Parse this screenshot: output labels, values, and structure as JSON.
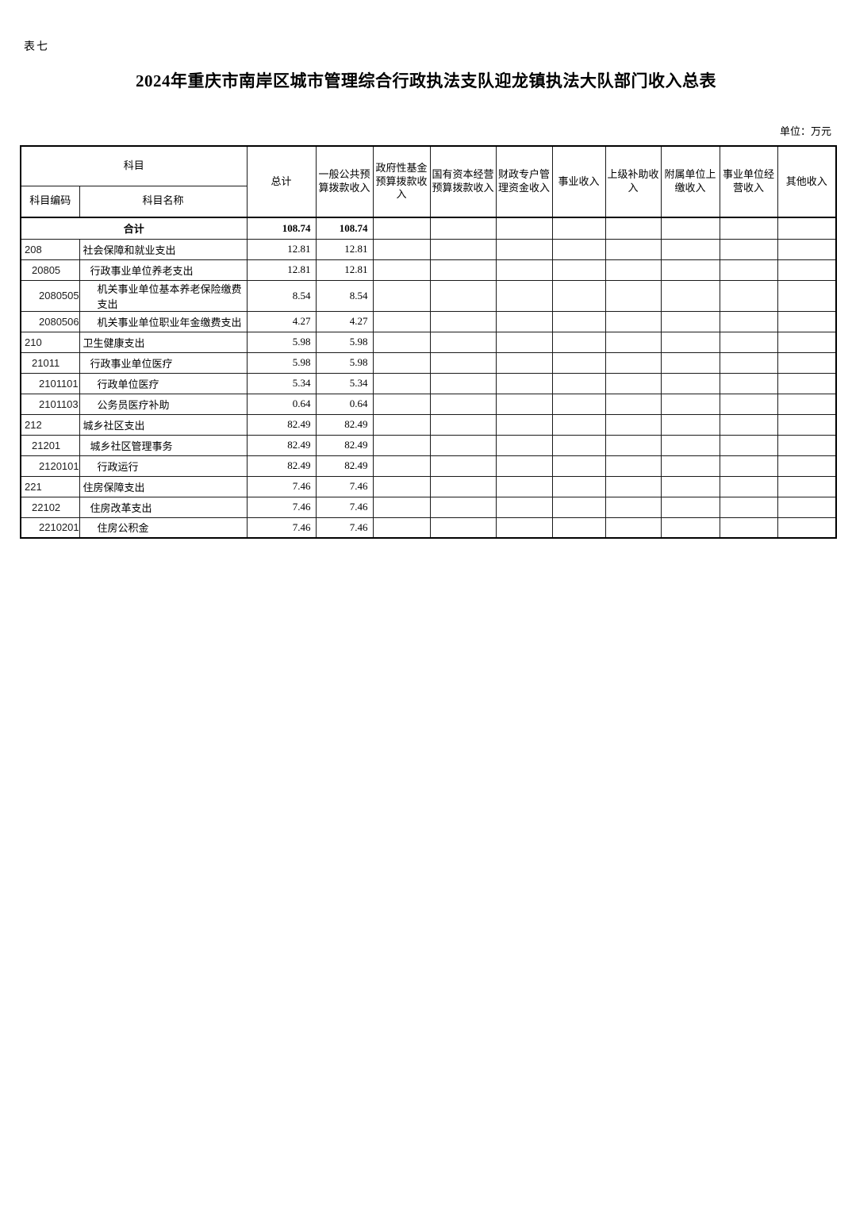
{
  "page": {
    "sheet_label": "表七",
    "title": "2024年重庆市南岸区城市管理综合行政执法支队迎龙镇执法大队部门收入总表",
    "unit_note": "单位：万元"
  },
  "table": {
    "header": {
      "subject_group": "科目",
      "subject_code": "科目编码",
      "subject_name": "科目名称",
      "value_columns": [
        "总计",
        "一般公共预算拨款收入",
        "政府性基金预算拨款收入",
        "国有资本经营预算拨款收入",
        "财政专户管理资金收入",
        "事业收入",
        "上级补助收入",
        "附属单位上缴收入",
        "事业单位经营收入",
        "其他收入"
      ]
    },
    "total_row": {
      "label": "合计",
      "values": [
        "108.74",
        "108.74",
        "",
        "",
        "",
        "",
        "",
        "",
        "",
        ""
      ]
    },
    "rows": [
      {
        "code": "208",
        "name": "社会保障和就业支出",
        "level": 1,
        "values": [
          "12.81",
          "12.81",
          "",
          "",
          "",
          "",
          "",
          "",
          "",
          ""
        ]
      },
      {
        "code": "20805",
        "name": "行政事业单位养老支出",
        "level": 2,
        "values": [
          "12.81",
          "12.81",
          "",
          "",
          "",
          "",
          "",
          "",
          "",
          ""
        ]
      },
      {
        "code": "2080505",
        "name": "机关事业单位基本养老保险缴费支出",
        "level": 3,
        "values": [
          "8.54",
          "8.54",
          "",
          "",
          "",
          "",
          "",
          "",
          "",
          ""
        ]
      },
      {
        "code": "2080506",
        "name": "机关事业单位职业年金缴费支出",
        "level": 3,
        "values": [
          "4.27",
          "4.27",
          "",
          "",
          "",
          "",
          "",
          "",
          "",
          ""
        ]
      },
      {
        "code": "210",
        "name": "卫生健康支出",
        "level": 1,
        "values": [
          "5.98",
          "5.98",
          "",
          "",
          "",
          "",
          "",
          "",
          "",
          ""
        ]
      },
      {
        "code": "21011",
        "name": "行政事业单位医疗",
        "level": 2,
        "values": [
          "5.98",
          "5.98",
          "",
          "",
          "",
          "",
          "",
          "",
          "",
          ""
        ]
      },
      {
        "code": "2101101",
        "name": "行政单位医疗",
        "level": 3,
        "values": [
          "5.34",
          "5.34",
          "",
          "",
          "",
          "",
          "",
          "",
          "",
          ""
        ]
      },
      {
        "code": "2101103",
        "name": "公务员医疗补助",
        "level": 3,
        "values": [
          "0.64",
          "0.64",
          "",
          "",
          "",
          "",
          "",
          "",
          "",
          ""
        ]
      },
      {
        "code": "212",
        "name": "城乡社区支出",
        "level": 1,
        "values": [
          "82.49",
          "82.49",
          "",
          "",
          "",
          "",
          "",
          "",
          "",
          ""
        ]
      },
      {
        "code": "21201",
        "name": "城乡社区管理事务",
        "level": 2,
        "values": [
          "82.49",
          "82.49",
          "",
          "",
          "",
          "",
          "",
          "",
          "",
          ""
        ]
      },
      {
        "code": "2120101",
        "name": "行政运行",
        "level": 3,
        "values": [
          "82.49",
          "82.49",
          "",
          "",
          "",
          "",
          "",
          "",
          "",
          ""
        ]
      },
      {
        "code": "221",
        "name": "住房保障支出",
        "level": 1,
        "values": [
          "7.46",
          "7.46",
          "",
          "",
          "",
          "",
          "",
          "",
          "",
          ""
        ]
      },
      {
        "code": "22102",
        "name": "住房改革支出",
        "level": 2,
        "values": [
          "7.46",
          "7.46",
          "",
          "",
          "",
          "",
          "",
          "",
          "",
          ""
        ]
      },
      {
        "code": "2210201",
        "name": "住房公积金",
        "level": 3,
        "values": [
          "7.46",
          "7.46",
          "",
          "",
          "",
          "",
          "",
          "",
          "",
          ""
        ]
      }
    ]
  }
}
